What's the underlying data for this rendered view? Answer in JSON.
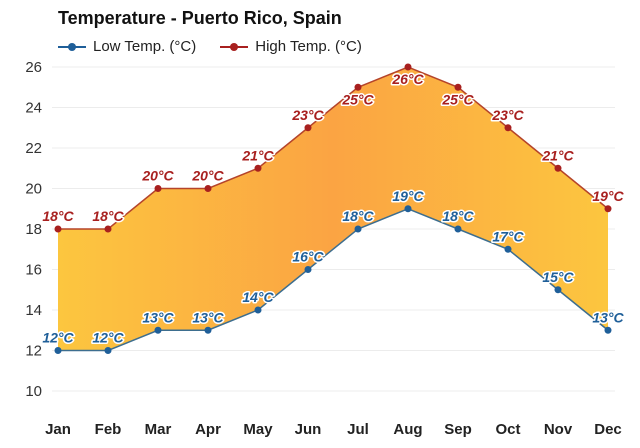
{
  "chart_data": {
    "type": "area",
    "title": "Temperature - Puerto Rico, Spain",
    "xlabel": "",
    "ylabel": "",
    "categories": [
      "Jan",
      "Feb",
      "Mar",
      "Apr",
      "May",
      "Jun",
      "Jul",
      "Aug",
      "Sep",
      "Oct",
      "Nov",
      "Dec"
    ],
    "series": [
      {
        "name": "Low Temp. (°C)",
        "color": "#1f5f99",
        "values": [
          12,
          12,
          13,
          13,
          14,
          16,
          18,
          19,
          18,
          17,
          15,
          13
        ],
        "labels": [
          "12°C",
          "12°C",
          "13°C",
          "13°C",
          "14°C",
          "16°C",
          "18°C",
          "19°C",
          "18°C",
          "17°C",
          "15°C",
          "13°C"
        ]
      },
      {
        "name": "High Temp. (°C)",
        "color": "#a8201f",
        "values": [
          18,
          18,
          20,
          20,
          21,
          23,
          25,
          26,
          25,
          23,
          21,
          19
        ],
        "labels": [
          "18°C",
          "18°C",
          "20°C",
          "20°C",
          "21°C",
          "23°C",
          "25°C",
          "26°C",
          "25°C",
          "23°C",
          "21°C",
          "19°C"
        ]
      }
    ],
    "ylim": [
      10,
      26
    ],
    "yticks": [
      10,
      12,
      14,
      16,
      18,
      20,
      22,
      24,
      26
    ],
    "grid": true,
    "legend_position": "top-left",
    "fill_between": {
      "edge_color": "#fcc63f",
      "center_color": "#fba443"
    }
  },
  "header": {
    "title": "Temperature - Puerto Rico, Spain"
  },
  "legend": {
    "items": [
      {
        "label": "Low Temp. (°C)",
        "color": "#1f5f99"
      },
      {
        "label": "High Temp. (°C)",
        "color": "#a8201f"
      }
    ]
  }
}
